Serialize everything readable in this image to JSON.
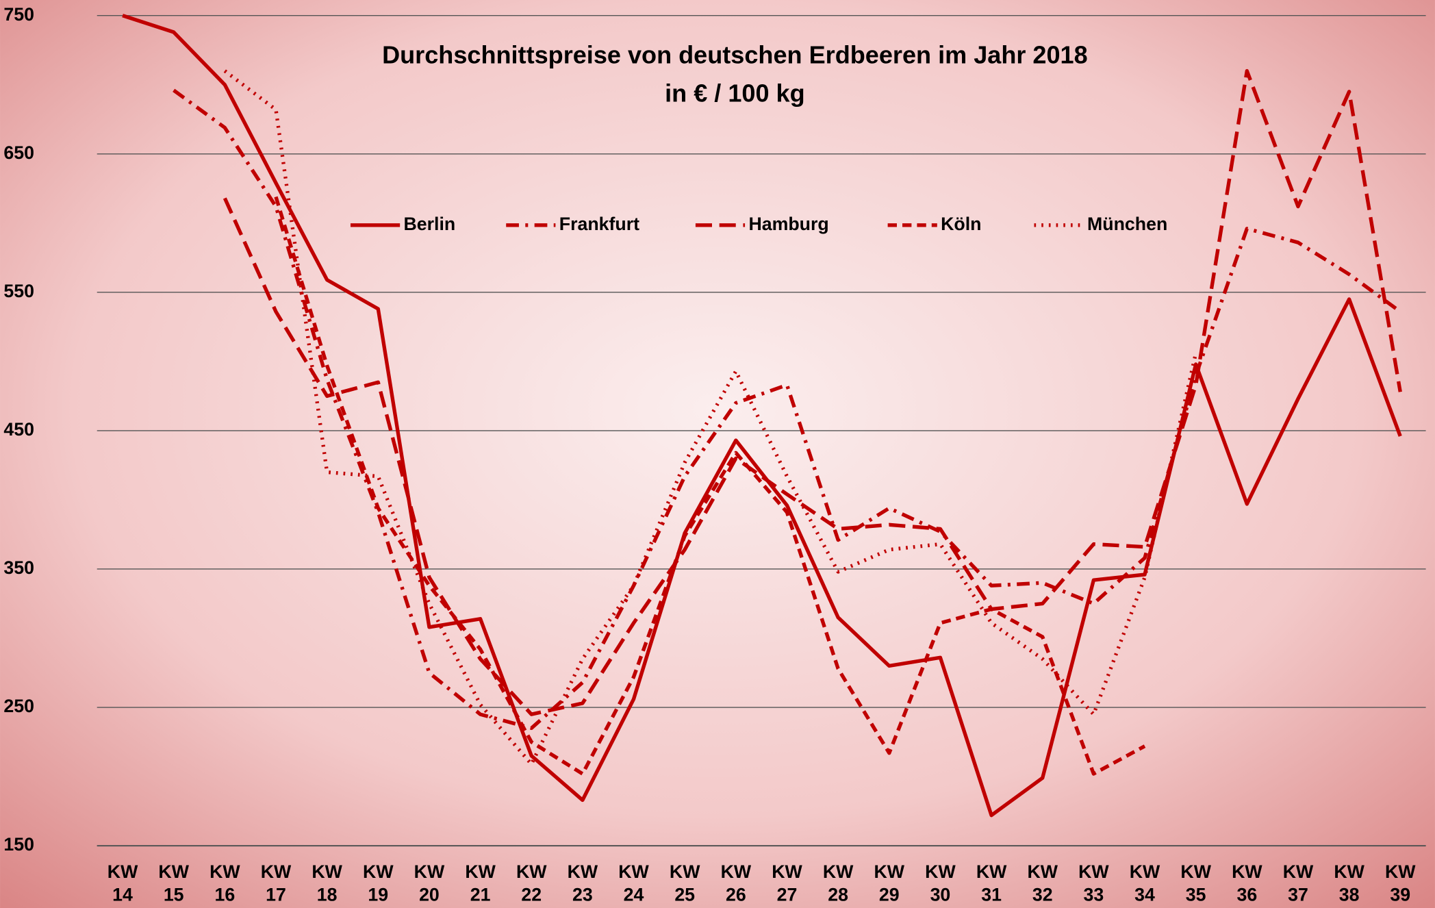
{
  "chart_data": {
    "type": "line",
    "title": "Durchschnittspreise von deutschen Erdbeeren im Jahr 2018",
    "subtitle": "in € / 100 kg",
    "categories": [
      "KW 14",
      "KW 15",
      "KW 16",
      "KW 17",
      "KW 18",
      "KW 19",
      "KW 20",
      "KW 21",
      "KW 22",
      "KW 23",
      "KW 24",
      "KW 25",
      "KW 26",
      "KW 27",
      "KW 28",
      "KW 29",
      "KW 30",
      "KW 31",
      "KW 32",
      "KW 33",
      "KW 34",
      "KW 35",
      "KW 36",
      "KW 37",
      "KW 38",
      "KW 39"
    ],
    "series": [
      {
        "name": "Berlin",
        "color": "#c00000",
        "dash": "none",
        "values": [
          750,
          738,
          700,
          629,
          559,
          538,
          308,
          314,
          215,
          183,
          256,
          376,
          443,
          396,
          315,
          280,
          286,
          172,
          199,
          342,
          346,
          498,
          397,
          473,
          545,
          446
        ]
      },
      {
        "name": "Frankfurt",
        "color": "#c00000",
        "dash": "14 7 3 7",
        "values": [
          null,
          696,
          669,
          612,
          487,
          391,
          275,
          245,
          235,
          268,
          338,
          417,
          470,
          483,
          371,
          394,
          377,
          338,
          340,
          325,
          358,
          490,
          596,
          586,
          563,
          536
        ]
      },
      {
        "name": "Hamburg",
        "color": "#c00000",
        "dash": "18 8",
        "values": [
          null,
          null,
          618,
          536,
          475,
          485,
          344,
          285,
          245,
          253,
          311,
          364,
          430,
          404,
          379,
          382,
          379,
          321,
          325,
          368,
          366,
          483,
          710,
          612,
          695,
          478
        ]
      },
      {
        "name": "Köln",
        "color": "#c00000",
        "dash": "10 6",
        "values": [
          null,
          null,
          null,
          619,
          497,
          394,
          338,
          292,
          225,
          202,
          272,
          374,
          434,
          391,
          278,
          217,
          311,
          321,
          301,
          202,
          222,
          null,
          null,
          null,
          null,
          null
        ]
      },
      {
        "name": "München",
        "color": "#c00000",
        "dash": "2 6",
        "values": [
          null,
          null,
          710,
          682,
          420,
          417,
          325,
          252,
          209,
          285,
          338,
          427,
          493,
          417,
          348,
          364,
          368,
          311,
          285,
          245,
          344,
          506,
          null,
          null,
          null,
          null
        ]
      }
    ],
    "ylim": [
      150,
      750
    ],
    "yticks": [
      150,
      250,
      350,
      450,
      550,
      650,
      750
    ],
    "grid": true
  }
}
